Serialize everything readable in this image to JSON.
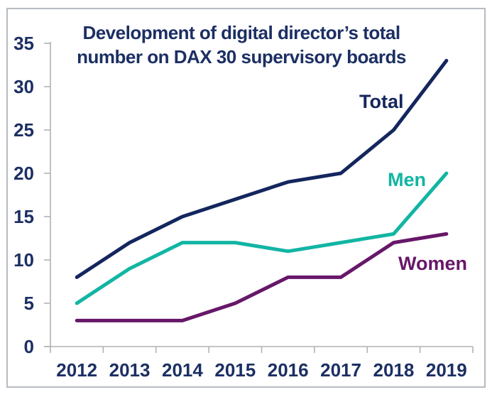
{
  "chart_data": {
    "type": "line",
    "title": "Development of digital director’s total number on DAX 30 supervisory boards",
    "title_lines": {
      "line1": "Development of digital director’s total",
      "line2": "number on DAX 30 supervisory boards"
    },
    "categories": [
      "2012",
      "2013",
      "2014",
      "2015",
      "2016",
      "2017",
      "2018",
      "2019"
    ],
    "series": [
      {
        "name": "Total",
        "values": [
          8,
          12,
          15,
          17,
          19,
          20,
          25,
          33
        ],
        "color": "#14265e"
      },
      {
        "name": "Men",
        "values": [
          5,
          9,
          12,
          12,
          11,
          12,
          13,
          20
        ],
        "color": "#12b5a3"
      },
      {
        "name": "Women",
        "values": [
          3,
          3,
          3,
          5,
          8,
          8,
          12,
          13
        ],
        "color": "#671769"
      }
    ],
    "ylim": [
      0,
      35
    ],
    "yticks": [
      0,
      5,
      10,
      15,
      20,
      25,
      30,
      35
    ],
    "grid": false,
    "legend": "inline-labels-near-lines",
    "axis_color": "#b3b3b3",
    "label_color": "#1c2f63",
    "frame_border_color": "#b7bbc1",
    "background_color": "#ffffff"
  }
}
